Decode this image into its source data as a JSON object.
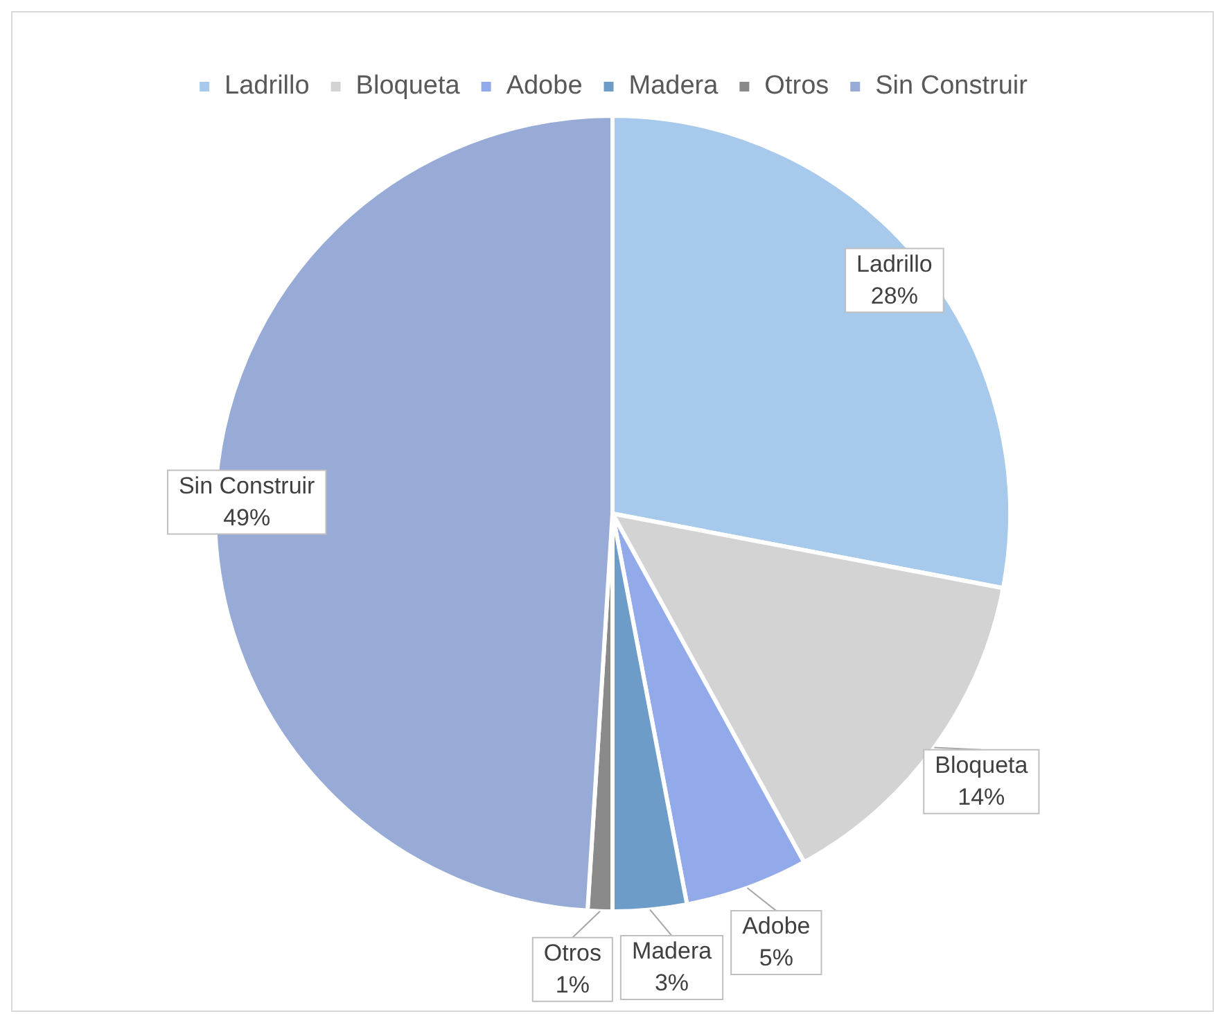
{
  "chart_data": {
    "type": "pie",
    "categories": [
      "Ladrillo",
      "Bloqueta",
      "Adobe",
      "Madera",
      "Otros",
      "Sin Construir"
    ],
    "values": [
      28,
      14,
      5,
      3,
      1,
      49
    ],
    "value_labels": [
      "28%",
      "14%",
      "5%",
      "3%",
      "1%",
      "49%"
    ],
    "colors": [
      "#a6c9ec",
      "#d3d3d3",
      "#93aaea",
      "#6d9cc9",
      "#8a8a8a",
      "#98aad6"
    ],
    "legend": "top"
  }
}
